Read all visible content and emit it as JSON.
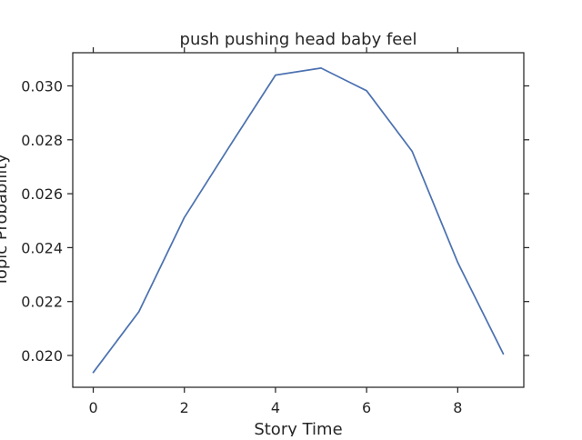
{
  "chart_data": {
    "type": "line",
    "title": "push pushing head baby feel",
    "xlabel": "Story Time",
    "ylabel": "Topic Probability",
    "xlim": [
      -0.45,
      9.45
    ],
    "ylim": [
      0.01882,
      0.03123
    ],
    "x_ticks": [
      0,
      2,
      4,
      6,
      8
    ],
    "x_tick_labels": [
      "0",
      "2",
      "4",
      "6",
      "8"
    ],
    "y_ticks": [
      0.02,
      0.022,
      0.024,
      0.026,
      0.028,
      0.03
    ],
    "y_tick_labels": [
      "0.020",
      "0.022",
      "0.024",
      "0.026",
      "0.028",
      "0.030"
    ],
    "grid": false,
    "series": [
      {
        "color": "#4c72b0",
        "x": [
          0,
          1,
          2,
          3,
          4,
          5,
          6,
          7,
          8,
          9
        ],
        "y": [
          0.01937,
          0.02162,
          0.02512,
          0.02778,
          0.0304,
          0.03066,
          0.02982,
          0.02757,
          0.02345,
          0.02006
        ]
      }
    ]
  }
}
